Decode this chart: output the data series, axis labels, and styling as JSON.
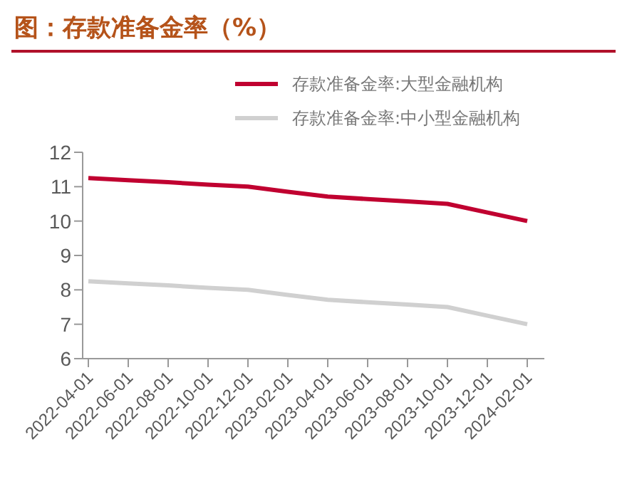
{
  "chart_data": {
    "type": "line",
    "title": "图：存款准备金率（%）",
    "categories": [
      "2022-04-01",
      "2022-06-01",
      "2022-08-01",
      "2022-10-01",
      "2022-12-01",
      "2023-02-01",
      "2023-04-01",
      "2023-06-01",
      "2023-08-01",
      "2023-10-01",
      "2023-12-01",
      "2024-02-01"
    ],
    "series": [
      {
        "name": "存款准备金率:大型金融机构",
        "color": "#c00030",
        "values": [
          11.25,
          11.19,
          11.13,
          11.06,
          11.0,
          10.85,
          10.71,
          10.64,
          10.57,
          10.5,
          10.25,
          10.0
        ]
      },
      {
        "name": "存款准备金率:中小型金融机构",
        "color": "#d0d0d0",
        "values": [
          8.25,
          8.19,
          8.13,
          8.06,
          8.0,
          7.85,
          7.71,
          7.64,
          7.57,
          7.5,
          7.25,
          7.0
        ]
      }
    ],
    "ylim": [
      6,
      12
    ],
    "yticks": [
      6,
      7,
      8,
      9,
      10,
      11,
      12
    ],
    "grid": false,
    "legend": "top",
    "marker": "none",
    "line_style": "solid"
  }
}
